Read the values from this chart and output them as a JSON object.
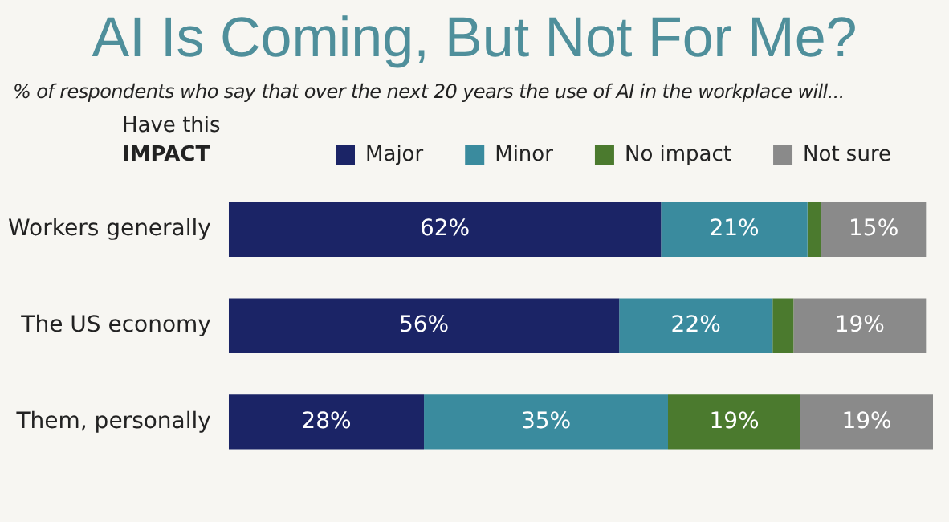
{
  "chart_data": {
    "type": "bar",
    "orientation": "horizontal",
    "stacked": true,
    "title": "AI Is Coming, But Not For Me?",
    "subtitle": "% of respondents who say that over the next 20 years the use of AI in the workplace will...",
    "legend_title": "Have this IMPACT",
    "legend": "top right",
    "tick_labels": "y",
    "xlim": [
      0,
      101
    ],
    "categories": [
      "Workers generally",
      "The US economy",
      "Them, personally"
    ],
    "series": [
      {
        "name": "Major",
        "color": "#1b2466",
        "values": [
          62,
          56,
          28
        ],
        "value_labels": [
          "62%",
          "56%",
          "28%"
        ]
      },
      {
        "name": "Minor",
        "color": "#3a8b9e",
        "values": [
          21,
          22,
          35
        ],
        "value_labels": [
          "21%",
          "22%",
          "35%"
        ]
      },
      {
        "name": "No impact",
        "color": "#4b7a2e",
        "values": [
          2,
          3,
          19
        ],
        "value_labels": [
          null,
          null,
          "19%"
        ]
      },
      {
        "name": "Not sure",
        "color": "#8a8a8a",
        "values": [
          15,
          19,
          19
        ],
        "value_labels": [
          "15%",
          "19%",
          "19%"
        ]
      }
    ]
  }
}
